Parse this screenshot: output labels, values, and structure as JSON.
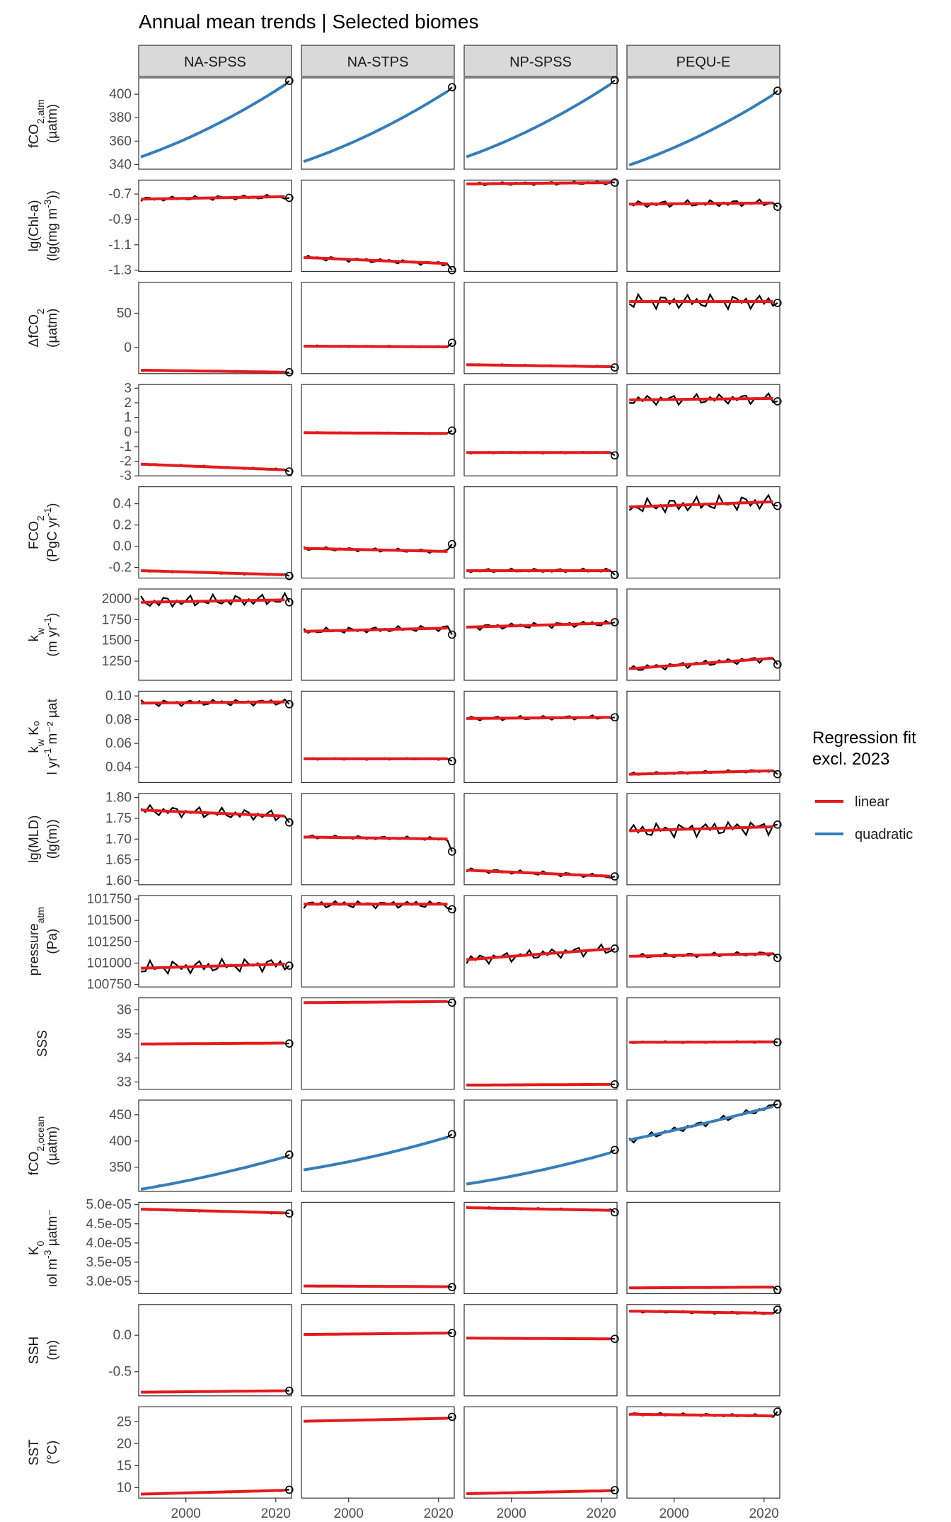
{
  "chart_data": {
    "type": "line",
    "title": "Annual mean trends | Selected biomes",
    "facet_columns": [
      "NA-SPSS",
      "NA-STPS",
      "NP-SPSS",
      "PEQU-E"
    ],
    "x": {
      "start": 1990,
      "end": 2023,
      "lim": [
        1989.5,
        2023.5
      ],
      "ticks": [
        2000,
        2020
      ],
      "tick_labels": [
        "2000",
        "2020"
      ]
    },
    "highlight_year": 2023,
    "legend": {
      "title_line1": "Regression fit",
      "title_line2": "excl. 2023",
      "items": [
        {
          "label": "linear",
          "color": "#e41a1c"
        },
        {
          "label": "quadratic",
          "color": "#377eb8"
        }
      ]
    },
    "colors": {
      "observed": "#000000",
      "linear": "#e41a1c",
      "quadratic": "#377eb8",
      "strip_bg": "#d9d9d9",
      "panel_border": "#333333"
    },
    "rows": [
      {
        "label_lines": [
          "fCO2,atm",
          "(µatm)"
        ],
        "label_display": [
          {
            "text": "fCO",
            "sub": "2,atm",
            "sup": "",
            "tail": ""
          },
          {
            "text": "(µatm)",
            "sub": "",
            "sup": "",
            "tail": ""
          }
        ],
        "ylim": [
          336,
          414
        ],
        "ticks": [
          340,
          360,
          380,
          400
        ],
        "tick_labels": [
          "340",
          "360",
          "380",
          "400"
        ],
        "fit": "quadratic",
        "series": [
          {
            "start": 346.5,
            "end": 410.5,
            "curve": 0.3,
            "amp": 0.4,
            "last": 411.5
          },
          {
            "start": 342.5,
            "end": 405.0,
            "curve": 0.3,
            "amp": 0.4,
            "last": 406.0
          },
          {
            "start": 346.5,
            "end": 411.0,
            "curve": 0.3,
            "amp": 0.4,
            "last": 412.0
          },
          {
            "start": 339.5,
            "end": 402.0,
            "curve": 0.3,
            "amp": 0.4,
            "last": 403.0
          }
        ]
      },
      {
        "label_lines": [
          "lg(Chl-a)",
          "(lg(mg m-3))"
        ],
        "label_display": [
          {
            "text": "lg(Chl-a)",
            "sub": "",
            "sup": "",
            "tail": ""
          },
          {
            "text": "(lg(mg m",
            "sub": "",
            "sup": "-3",
            "tail": "))"
          }
        ],
        "ylim": [
          -1.31,
          -0.59
        ],
        "ticks": [
          -1.3,
          -1.1,
          -0.9,
          -0.7
        ],
        "tick_labels": [
          "-1.3",
          "-1.1",
          "-0.9",
          "-0.7"
        ],
        "fit": "linear",
        "series": [
          {
            "start": -0.74,
            "end": -0.72,
            "curve": 0,
            "amp": 0.02,
            "last": -0.73
          },
          {
            "start": -1.2,
            "end": -1.25,
            "curve": 0,
            "amp": 0.02,
            "last": -1.3
          },
          {
            "start": -0.62,
            "end": -0.61,
            "curve": 0,
            "amp": 0.015,
            "last": -0.61
          },
          {
            "start": -0.78,
            "end": -0.77,
            "curve": 0,
            "amp": 0.03,
            "last": -0.8
          }
        ]
      },
      {
        "label_lines": [
          "ΔfCO2",
          "(µatm)"
        ],
        "label_display": [
          {
            "text": "ΔfCO",
            "sub": "2",
            "sup": "",
            "tail": ""
          },
          {
            "text": "(µatm)",
            "sub": "",
            "sup": "",
            "tail": ""
          }
        ],
        "ylim": [
          -38,
          95
        ],
        "ticks": [
          0,
          50
        ],
        "tick_labels": [
          "0",
          "50"
        ],
        "fit": "linear",
        "series": [
          {
            "start": -33,
            "end": -36,
            "curve": 0,
            "amp": 1.0,
            "last": -36
          },
          {
            "start": 2,
            "end": 1,
            "curve": 0,
            "amp": 1.5,
            "last": 7
          },
          {
            "start": -25,
            "end": -28,
            "curve": 0,
            "amp": 1.5,
            "last": -29
          },
          {
            "start": 67,
            "end": 67,
            "curve": 0,
            "amp": 12,
            "last": 65
          }
        ]
      },
      {
        "label_lines": [],
        "label_display": [],
        "ylim": [
          -3.0,
          3.25
        ],
        "ticks": [
          -3,
          -2,
          -1,
          0,
          1,
          2,
          3
        ],
        "tick_labels": [
          "-3",
          "-2",
          "-1",
          "0",
          "1",
          "2",
          "3"
        ],
        "fit": "linear",
        "series": [
          {
            "start": -2.2,
            "end": -2.6,
            "curve": 0,
            "amp": 0.08,
            "last": -2.7
          },
          {
            "start": -0.05,
            "end": -0.1,
            "curve": 0,
            "amp": 0.06,
            "last": 0.1
          },
          {
            "start": -1.4,
            "end": -1.4,
            "curve": 0,
            "amp": 0.08,
            "last": -1.6
          },
          {
            "start": 2.2,
            "end": 2.3,
            "curve": 0,
            "amp": 0.4,
            "last": 2.1
          }
        ]
      },
      {
        "label_lines": [
          "FCO2",
          "(PgC yr-1)"
        ],
        "label_display": [
          {
            "text": "FCO",
            "sub": "2",
            "sup": "",
            "tail": ""
          },
          {
            "text": "(PgC yr",
            "sub": "",
            "sup": "-1",
            "tail": ")"
          }
        ],
        "ylim": [
          -0.3,
          0.56
        ],
        "ticks": [
          -0.2,
          0.0,
          0.2,
          0.4
        ],
        "tick_labels": [
          "-0.2",
          "0.0",
          "0.2",
          "0.4"
        ],
        "fit": "linear",
        "series": [
          {
            "start": -0.23,
            "end": -0.27,
            "curve": 0,
            "amp": 0.01,
            "last": -0.28
          },
          {
            "start": -0.02,
            "end": -0.05,
            "curve": 0,
            "amp": 0.02,
            "last": 0.02
          },
          {
            "start": -0.23,
            "end": -0.23,
            "curve": 0,
            "amp": 0.02,
            "last": -0.27
          },
          {
            "start": 0.37,
            "end": 0.42,
            "curve": 0,
            "amp": 0.08,
            "last": 0.38
          }
        ]
      },
      {
        "label_lines": [
          "kw",
          "(m yr-1)"
        ],
        "label_display": [
          {
            "text": "k",
            "sub": "w",
            "sup": "",
            "tail": ""
          },
          {
            "text": "(m yr",
            "sub": "",
            "sup": "-1",
            "tail": ")"
          }
        ],
        "ylim": [
          1020,
          2120
        ],
        "ticks": [
          1250,
          1500,
          1750,
          2000
        ],
        "tick_labels": [
          "1250",
          "1500",
          "1750",
          "2000"
        ],
        "fit": "linear",
        "series": [
          {
            "start": 1960,
            "end": 1990,
            "curve": 0,
            "amp": 80,
            "last": 1960
          },
          {
            "start": 1610,
            "end": 1650,
            "curve": 0,
            "amp": 40,
            "last": 1570
          },
          {
            "start": 1660,
            "end": 1710,
            "curve": 0,
            "amp": 40,
            "last": 1720
          },
          {
            "start": 1160,
            "end": 1290,
            "curve": 0,
            "amp": 45,
            "last": 1210
          }
        ]
      },
      {
        "label_lines": [
          "kw K0",
          "l yr-1 m-2 µat"
        ],
        "label_display": [
          {
            "text": "k",
            "sub": "w",
            "sup": "",
            "tail": " K₀"
          },
          {
            "text": "l yr",
            "sub": "",
            "sup": "-1",
            "tail": " m⁻² µat"
          }
        ],
        "ylim": [
          0.027,
          0.104
        ],
        "ticks": [
          0.04,
          0.06,
          0.08,
          0.1
        ],
        "tick_labels": [
          "0.04",
          "0.06",
          "0.08",
          "0.10"
        ],
        "fit": "linear",
        "series": [
          {
            "start": 0.094,
            "end": 0.095,
            "curve": 0,
            "amp": 0.003,
            "last": 0.093
          },
          {
            "start": 0.047,
            "end": 0.047,
            "curve": 0,
            "amp": 0.001,
            "last": 0.045
          },
          {
            "start": 0.081,
            "end": 0.082,
            "curve": 0,
            "amp": 0.002,
            "last": 0.082
          },
          {
            "start": 0.034,
            "end": 0.037,
            "curve": 0,
            "amp": 0.0015,
            "last": 0.034
          }
        ]
      },
      {
        "label_lines": [
          "lg(MLD)",
          "(lg(m))"
        ],
        "label_display": [
          {
            "text": "lg(MLD)",
            "sub": "",
            "sup": "",
            "tail": ""
          },
          {
            "text": "(lg(m))",
            "sub": "",
            "sup": "",
            "tail": ""
          }
        ],
        "ylim": [
          1.59,
          1.81
        ],
        "ticks": [
          1.6,
          1.65,
          1.7,
          1.75,
          1.8
        ],
        "tick_labels": [
          "1.60",
          "1.65",
          "1.70",
          "1.75",
          "1.80"
        ],
        "fit": "linear",
        "series": [
          {
            "start": 1.77,
            "end": 1.755,
            "curve": 0,
            "amp": 0.015,
            "last": 1.74
          },
          {
            "start": 1.705,
            "end": 1.7,
            "curve": 0,
            "amp": 0.005,
            "last": 1.67
          },
          {
            "start": 1.625,
            "end": 1.61,
            "curve": 0,
            "amp": 0.006,
            "last": 1.61
          },
          {
            "start": 1.72,
            "end": 1.73,
            "curve": 0,
            "amp": 0.02,
            "last": 1.735
          }
        ]
      },
      {
        "label_lines": [
          "pressureatm",
          "(Pa)"
        ],
        "label_display": [
          {
            "text": "pressure",
            "sub": "atm",
            "sup": "",
            "tail": ""
          },
          {
            "text": "(Pa)",
            "sub": "",
            "sup": "",
            "tail": ""
          }
        ],
        "ylim": [
          100720,
          101790
        ],
        "ticks": [
          100750,
          101000,
          101250,
          101500,
          101750
        ],
        "tick_labels": [
          "100750",
          "101000",
          "101250",
          "101500",
          "101750"
        ],
        "fit": "linear",
        "series": [
          {
            "start": 100940,
            "end": 100990,
            "curve": 0,
            "amp": 90,
            "last": 100970
          },
          {
            "start": 101690,
            "end": 101690,
            "curve": 0,
            "amp": 50,
            "last": 101630
          },
          {
            "start": 101040,
            "end": 101170,
            "curve": 0,
            "amp": 70,
            "last": 101170
          },
          {
            "start": 101080,
            "end": 101110,
            "curve": 0,
            "amp": 30,
            "last": 101060
          }
        ]
      },
      {
        "label_lines": [
          "SSS"
        ],
        "label_display": [
          {
            "text": "SSS",
            "sub": "",
            "sup": "",
            "tail": ""
          }
        ],
        "ylim": [
          32.7,
          36.5
        ],
        "ticks": [
          33,
          34,
          35,
          36
        ],
        "tick_labels": [
          "33",
          "34",
          "35",
          "36"
        ],
        "fit": "linear",
        "series": [
          {
            "start": 34.58,
            "end": 34.62,
            "curve": 0,
            "amp": 0.02,
            "last": 34.6
          },
          {
            "start": 36.3,
            "end": 36.35,
            "curve": 0,
            "amp": 0.02,
            "last": 36.3
          },
          {
            "start": 32.87,
            "end": 32.9,
            "curve": 0,
            "amp": 0.02,
            "last": 32.9
          },
          {
            "start": 34.65,
            "end": 34.67,
            "curve": 0,
            "amp": 0.05,
            "last": 34.65
          }
        ]
      },
      {
        "label_lines": [
          "fCO2,ocean",
          "(µatm)"
        ],
        "label_display": [
          {
            "text": "fCO",
            "sub": "2,ocean",
            "sup": "",
            "tail": ""
          },
          {
            "text": "(µatm)",
            "sub": "",
            "sup": "",
            "tail": ""
          }
        ],
        "ylim": [
          304,
          478
        ],
        "ticks": [
          350,
          400,
          450
        ],
        "tick_labels": [
          "350",
          "400",
          "450"
        ],
        "fit": "quadratic",
        "series": [
          {
            "start": 308,
            "end": 372,
            "curve": 0.25,
            "amp": 1.5,
            "last": 374
          },
          {
            "start": 345,
            "end": 410,
            "curve": 0.3,
            "amp": 1.5,
            "last": 413
          },
          {
            "start": 318,
            "end": 380,
            "curve": 0.3,
            "amp": 1.5,
            "last": 383
          },
          {
            "start": 402,
            "end": 468,
            "curve": 0.1,
            "amp": 7,
            "last": 470
          }
        ]
      },
      {
        "label_lines": [
          "K0",
          "ιol m-3 µatm-"
        ],
        "label_display": [
          {
            "text": "K",
            "sub": "0",
            "sup": "",
            "tail": ""
          },
          {
            "text": "ιol m",
            "sub": "",
            "sup": "-3",
            "tail": " µatm⁻"
          }
        ],
        "ylim": [
          2.68e-05,
          5.06e-05
        ],
        "ticks": [
          3e-05,
          3.5e-05,
          4e-05,
          4.5e-05,
          5e-05
        ],
        "tick_labels": [
          "3.0e-05",
          "3.5e-05",
          "4.0e-05",
          "4.5e-05",
          "5.0e-05"
        ],
        "fit": "linear",
        "series": [
          {
            "start": 4.88e-05,
            "end": 4.78e-05,
            "curve": 0,
            "amp": 2.5e-07,
            "last": 4.77e-05
          },
          {
            "start": 2.88e-05,
            "end": 2.86e-05,
            "curve": 0,
            "amp": 1e-07,
            "last": 2.85e-05
          },
          {
            "start": 4.92e-05,
            "end": 4.85e-05,
            "curve": 0,
            "amp": 3e-07,
            "last": 4.8e-05
          },
          {
            "start": 2.83e-05,
            "end": 2.85e-05,
            "curve": 0,
            "amp": 1.5e-07,
            "last": 2.78e-05
          }
        ]
      },
      {
        "label_lines": [
          "SSH",
          "(m)"
        ],
        "label_display": [
          {
            "text": "SSH",
            "sub": "",
            "sup": "",
            "tail": ""
          },
          {
            "text": "(m)",
            "sub": "",
            "sup": "",
            "tail": ""
          }
        ],
        "ylim": [
          -0.83,
          0.42
        ],
        "ticks": [
          -0.5,
          0.0
        ],
        "tick_labels": [
          "-0.5",
          "0.0"
        ],
        "fit": "linear",
        "series": [
          {
            "start": -0.78,
            "end": -0.76,
            "curve": 0,
            "amp": 0.005,
            "last": -0.76
          },
          {
            "start": 0.01,
            "end": 0.03,
            "curve": 0,
            "amp": 0.005,
            "last": 0.03
          },
          {
            "start": -0.04,
            "end": -0.05,
            "curve": 0,
            "amp": 0.005,
            "last": -0.05
          },
          {
            "start": 0.33,
            "end": 0.3,
            "curve": 0,
            "amp": 0.02,
            "last": 0.35
          }
        ]
      },
      {
        "label_lines": [
          "SST",
          "(°C)"
        ],
        "label_display": [
          {
            "text": "SST",
            "sub": "",
            "sup": "",
            "tail": ""
          },
          {
            "text": "(°C)",
            "sub": "",
            "sup": "",
            "tail": ""
          }
        ],
        "ylim": [
          7.6,
          28.4
        ],
        "ticks": [
          10,
          15,
          20,
          25
        ],
        "tick_labels": [
          "10",
          "15",
          "20",
          "25"
        ],
        "fit": "linear",
        "series": [
          {
            "start": 8.5,
            "end": 9.4,
            "curve": 0,
            "amp": 0.2,
            "last": 9.5
          },
          {
            "start": 25.1,
            "end": 25.8,
            "curve": 0,
            "amp": 0.15,
            "last": 26.1
          },
          {
            "start": 8.6,
            "end": 9.3,
            "curve": 0,
            "amp": 0.2,
            "last": 9.4
          },
          {
            "start": 26.7,
            "end": 26.3,
            "curve": 0,
            "amp": 0.4,
            "last": 27.3
          }
        ]
      }
    ]
  }
}
